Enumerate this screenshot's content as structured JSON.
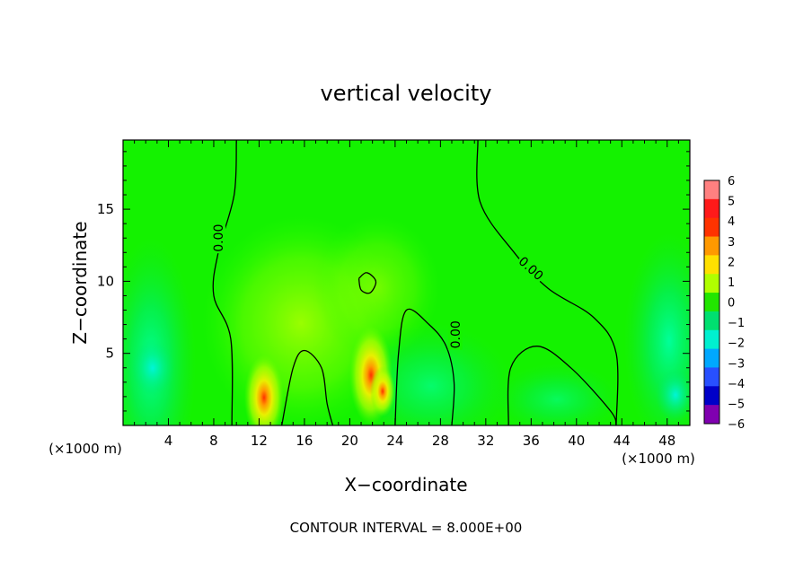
{
  "chart_data": {
    "type": "heatmap",
    "title": "vertical velocity",
    "xlabel": "X−coordinate",
    "ylabel": "Z−coordinate",
    "x_unit_left": "(×1000 m)",
    "x_unit_right": "(×1000 m)",
    "xlim": [
      0,
      50
    ],
    "ylim": [
      0,
      19.8
    ],
    "x_ticks": [
      4,
      8,
      12,
      16,
      20,
      24,
      28,
      32,
      36,
      40,
      44,
      48
    ],
    "x_tick_labels": [
      "4",
      "8",
      "12",
      "16",
      "20",
      "24",
      "28",
      "32",
      "36",
      "40",
      "44",
      "48"
    ],
    "y_ticks": [
      5,
      10,
      15
    ],
    "y_tick_labels": [
      "5",
      "10",
      "15"
    ],
    "colorbar": {
      "levels": [
        6,
        5,
        4,
        3,
        2,
        1,
        0,
        -1,
        -2,
        -3,
        -4,
        -5,
        -6
      ],
      "labels": [
        "6",
        "5",
        "4",
        "3",
        "2",
        "1",
        "0",
        "−1",
        "−2",
        "−3",
        "−4",
        "−5",
        "−6"
      ],
      "colors": [
        "#ff8080",
        "#ff1a1a",
        "#ff3300",
        "#ff9900",
        "#ffe000",
        "#b0ff00",
        "#22e600",
        "#00e070",
        "#00f0d0",
        "#00a8ff",
        "#2850ff",
        "#0000c8",
        "#8000b0"
      ]
    },
    "contour_label": "0.00",
    "contour_interval_text": "CONTOUR INTERVAL = 8.000E+00",
    "contours": [
      {
        "label": "0.00",
        "points": [
          [
            10.0,
            19.8
          ],
          [
            9.8,
            16
          ],
          [
            8.4,
            12
          ],
          [
            8.0,
            9
          ],
          [
            9.5,
            6
          ],
          [
            9.6,
            0
          ]
        ]
      },
      {
        "label": "0.00",
        "points": [
          [
            31.3,
            19.8
          ],
          [
            31.5,
            15.5
          ],
          [
            34.5,
            12
          ],
          [
            37.5,
            9.5
          ],
          [
            41.5,
            7.5
          ],
          [
            43.5,
            5
          ],
          [
            43.5,
            0
          ]
        ]
      },
      {
        "label": "0.00",
        "points": [
          [
            24.0,
            0
          ],
          [
            24.3,
            5
          ],
          [
            25.0,
            8.0
          ],
          [
            27.0,
            7.0
          ],
          [
            28.5,
            5.5
          ],
          [
            29.2,
            3
          ],
          [
            29.0,
            0
          ]
        ]
      },
      {
        "label": "",
        "points": [
          [
            14.0,
            0
          ],
          [
            15.0,
            4
          ],
          [
            16.0,
            5.2
          ],
          [
            17.5,
            4.0
          ],
          [
            18.0,
            1.5
          ],
          [
            18.5,
            0
          ]
        ]
      },
      {
        "label": "",
        "points": [
          [
            34.0,
            0
          ],
          [
            34.2,
            4
          ],
          [
            36.5,
            5.5
          ],
          [
            39.5,
            4.0
          ],
          [
            43.0,
            1.0
          ],
          [
            43.5,
            0
          ]
        ]
      },
      {
        "label": "",
        "points": [
          [
            20.8,
            10.2
          ],
          [
            21.5,
            10.6
          ],
          [
            22.3,
            10.0
          ],
          [
            21.8,
            9.2
          ],
          [
            21.0,
            9.4
          ],
          [
            20.8,
            10.2
          ]
        ]
      }
    ]
  }
}
